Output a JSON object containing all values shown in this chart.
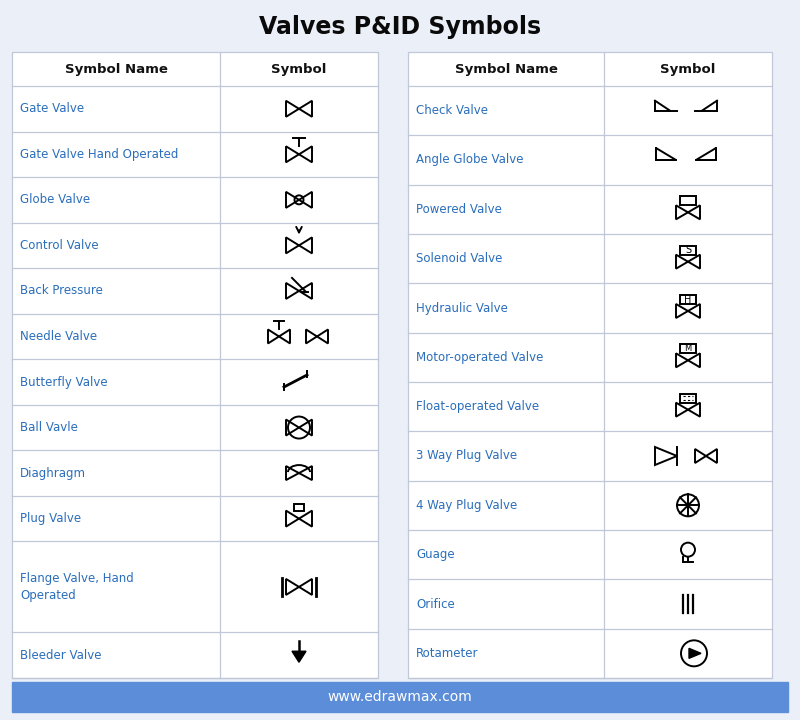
{
  "title": "Valves P&ID Symbols",
  "background_color": "#EBF0F8",
  "table_bg": "#FFFFFF",
  "header_text_color": "#111111",
  "name_color": "#2A6EBB",
  "border_color": "#C0C8D8",
  "footer_bg": "#5B8DD9",
  "footer_text": "www.edrawmax.com",
  "footer_text_color": "#FFFFFF",
  "left_rows": [
    "Gate Valve",
    "Gate Valve Hand Operated",
    "Globe Valve",
    "Control Valve",
    "Back Pressure",
    "Needle Valve",
    "Butterfly Valve",
    "Ball Vavle",
    "Diaghragm",
    "Plug Valve",
    "Flange Valve, Hand\nOperated",
    "Bleeder Valve"
  ],
  "right_rows": [
    "Check Valve",
    "Angle Globe Valve",
    "Powered Valve",
    "Solenoid Valve",
    "Hydraulic Valve",
    "Motor-operated Valve",
    "Float-operated Valve",
    "3 Way Plug Valve",
    "4 Way Plug Valve",
    "Guage",
    "Orifice",
    "Rotameter"
  ]
}
